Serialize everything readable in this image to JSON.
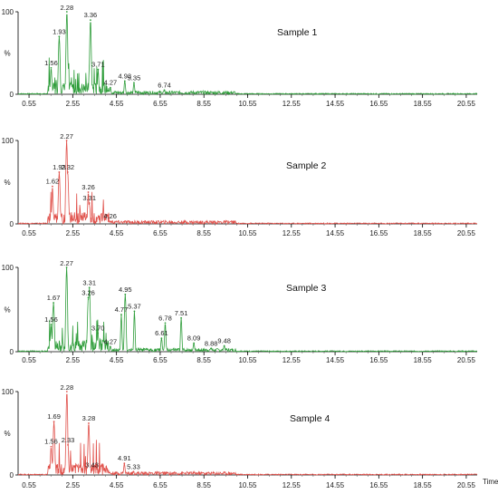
{
  "chart_data": [
    {
      "type": "line",
      "title": "Sample 1",
      "color": "#2e9d3a",
      "xlim": [
        0.05,
        21.05
      ],
      "ylim": [
        0,
        100
      ],
      "x_ticks": [
        0.55,
        2.55,
        4.55,
        6.55,
        8.55,
        10.55,
        12.55,
        14.55,
        16.55,
        18.55,
        20.55
      ],
      "x_tick_labels": [
        "0.55",
        "2.55",
        "4.55",
        "6.55",
        "8.55",
        "10.55",
        "12.55",
        "14.55",
        "16.55",
        "18.55",
        "20.55"
      ],
      "y_ticks": [
        0,
        100
      ],
      "y_tick_labels": [
        "0",
        "100"
      ],
      "ylabel": "%",
      "xlabel": "",
      "peaks": [
        {
          "x": 1.56,
          "y": 32,
          "label": "1.56"
        },
        {
          "x": 1.93,
          "y": 70,
          "label": "1.93"
        },
        {
          "x": 2.28,
          "y": 100,
          "label": "2.28"
        },
        {
          "x": 3.36,
          "y": 90,
          "label": "3.36"
        },
        {
          "x": 3.71,
          "y": 30,
          "label": "3.71"
        },
        {
          "x": 4.27,
          "y": 8,
          "label": "4.27"
        },
        {
          "x": 4.93,
          "y": 16,
          "label": "4.93"
        },
        {
          "x": 5.35,
          "y": 14,
          "label": "5.35"
        },
        {
          "x": 6.74,
          "y": 5,
          "label": "6.74"
        }
      ]
    },
    {
      "type": "line",
      "title": "Sample 2",
      "color": "#e0504a",
      "xlim": [
        0.05,
        21.05
      ],
      "ylim": [
        0,
        100
      ],
      "x_ticks": [
        0.55,
        2.55,
        4.55,
        6.55,
        8.55,
        10.55,
        12.55,
        14.55,
        16.55,
        18.55,
        20.55
      ],
      "x_tick_labels": [
        "0.55",
        "2.55",
        "4.55",
        "6.55",
        "8.55",
        "10.55",
        "12.55",
        "14.55",
        "16.55",
        "18.55",
        "20.55"
      ],
      "y_ticks": [
        0,
        100
      ],
      "y_tick_labels": [
        "0",
        "100"
      ],
      "ylabel": "%",
      "xlabel": "",
      "peaks": [
        {
          "x": 1.62,
          "y": 45,
          "label": "1.62"
        },
        {
          "x": 1.93,
          "y": 62,
          "label": "1.93"
        },
        {
          "x": 2.27,
          "y": 100,
          "label": "2.27"
        },
        {
          "x": 2.32,
          "y": 62,
          "label": "2.32"
        },
        {
          "x": 3.26,
          "y": 38,
          "label": "3.26"
        },
        {
          "x": 3.31,
          "y": 25,
          "label": "3.31"
        },
        {
          "x": 4.26,
          "y": 3,
          "label": "4.26"
        }
      ]
    },
    {
      "type": "line",
      "title": "Sample 3",
      "color": "#2e9d3a",
      "xlim": [
        0.05,
        21.05
      ],
      "ylim": [
        0,
        100
      ],
      "x_ticks": [
        0.55,
        2.55,
        4.55,
        6.55,
        8.55,
        10.55,
        12.55,
        14.55,
        16.55,
        18.55,
        20.55
      ],
      "x_tick_labels": [
        "0.55",
        "2.55",
        "4.55",
        "6.55",
        "8.55",
        "10.55",
        "12.55",
        "14.55",
        "16.55",
        "18.55",
        "20.55"
      ],
      "y_ticks": [
        0,
        100
      ],
      "y_tick_labels": [
        "0",
        "100"
      ],
      "ylabel": "%",
      "xlabel": "",
      "peaks": [
        {
          "x": 1.56,
          "y": 32,
          "label": "1.56"
        },
        {
          "x": 1.67,
          "y": 58,
          "label": "1.67"
        },
        {
          "x": 2.27,
          "y": 100,
          "label": "2.27"
        },
        {
          "x": 3.26,
          "y": 64,
          "label": "3.26"
        },
        {
          "x": 3.31,
          "y": 76,
          "label": "3.31"
        },
        {
          "x": 3.7,
          "y": 22,
          "label": "3.70"
        },
        {
          "x": 4.27,
          "y": 6,
          "label": "4.27"
        },
        {
          "x": 4.77,
          "y": 44,
          "label": "4.77"
        },
        {
          "x": 4.95,
          "y": 68,
          "label": "4.95"
        },
        {
          "x": 5.37,
          "y": 48,
          "label": "5.37"
        },
        {
          "x": 6.61,
          "y": 16,
          "label": "6.61"
        },
        {
          "x": 6.78,
          "y": 34,
          "label": "6.78"
        },
        {
          "x": 7.51,
          "y": 40,
          "label": "7.51"
        },
        {
          "x": 8.09,
          "y": 10,
          "label": "8.09"
        },
        {
          "x": 8.88,
          "y": 4,
          "label": "8.88"
        },
        {
          "x": 9.48,
          "y": 7,
          "label": "9.48"
        }
      ]
    },
    {
      "type": "line",
      "title": "Sample 4",
      "color": "#e0504a",
      "xlim": [
        0.05,
        21.05
      ],
      "ylim": [
        0,
        100
      ],
      "x_ticks": [
        0.55,
        2.55,
        4.55,
        6.55,
        8.55,
        10.55,
        12.55,
        14.55,
        16.55,
        18.55,
        20.55
      ],
      "x_tick_labels": [
        "0.55",
        "2.55",
        "4.55",
        "6.55",
        "8.55",
        "10.55",
        "12.55",
        "14.55",
        "16.55",
        "18.55",
        "20.55"
      ],
      "y_ticks": [
        0,
        100
      ],
      "y_tick_labels": [
        "0",
        "100"
      ],
      "ylabel": "%",
      "xlabel": "Time",
      "peaks": [
        {
          "x": 1.56,
          "y": 34,
          "label": "1.56"
        },
        {
          "x": 1.69,
          "y": 64,
          "label": "1.69"
        },
        {
          "x": 2.28,
          "y": 100,
          "label": "2.28"
        },
        {
          "x": 2.33,
          "y": 36,
          "label": "2.33"
        },
        {
          "x": 3.28,
          "y": 62,
          "label": "3.28"
        },
        {
          "x": 3.43,
          "y": 6,
          "label": "3.43"
        },
        {
          "x": 4.91,
          "y": 14,
          "label": "4.91"
        },
        {
          "x": 5.33,
          "y": 4,
          "label": "5.33"
        }
      ]
    }
  ]
}
